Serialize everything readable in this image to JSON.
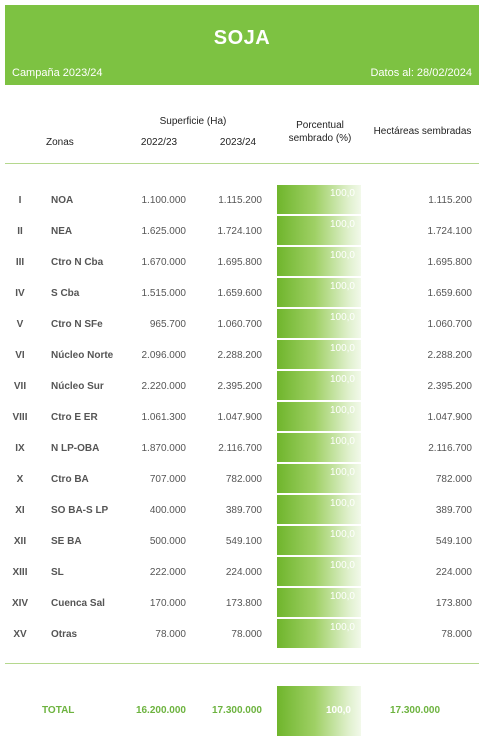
{
  "header": {
    "title": "SOJA",
    "campaign": "Campaña 2023/24",
    "date": "Datos al: 28/02/2024"
  },
  "columns": {
    "zonas": "Zonas",
    "superficie": "Superficie (Ha)",
    "year1": "2022/23",
    "year2": "2023/24",
    "porcentual_line1": "Porcentual",
    "porcentual_line2": "sembrado (%)",
    "hectareas": "Hectáreas sembradas"
  },
  "rows": [
    {
      "roman": "I",
      "zone": "NOA",
      "v2022": "1.100.000",
      "v2023": "1.115.200",
      "pct": "100,0",
      "pct_value": 100.0,
      "hs": "1.115.200"
    },
    {
      "roman": "II",
      "zone": "NEA",
      "v2022": "1.625.000",
      "v2023": "1.724.100",
      "pct": "100,0",
      "pct_value": 100.0,
      "hs": "1.724.100"
    },
    {
      "roman": "III",
      "zone": "Ctro N Cba",
      "v2022": "1.670.000",
      "v2023": "1.695.800",
      "pct": "100,0",
      "pct_value": 100.0,
      "hs": "1.695.800"
    },
    {
      "roman": "IV",
      "zone": "S Cba",
      "v2022": "1.515.000",
      "v2023": "1.659.600",
      "pct": "100,0",
      "pct_value": 100.0,
      "hs": "1.659.600"
    },
    {
      "roman": "V",
      "zone": "Ctro N SFe",
      "v2022": "965.700",
      "v2023": "1.060.700",
      "pct": "100,0",
      "pct_value": 100.0,
      "hs": "1.060.700"
    },
    {
      "roman": "VI",
      "zone": "Núcleo Norte",
      "v2022": "2.096.000",
      "v2023": "2.288.200",
      "pct": "100,0",
      "pct_value": 100.0,
      "hs": "2.288.200"
    },
    {
      "roman": "VII",
      "zone": "Núcleo Sur",
      "v2022": "2.220.000",
      "v2023": "2.395.200",
      "pct": "100,0",
      "pct_value": 100.0,
      "hs": "2.395.200"
    },
    {
      "roman": "VIII",
      "zone": "Ctro E ER",
      "v2022": "1.061.300",
      "v2023": "1.047.900",
      "pct": "100,0",
      "pct_value": 100.0,
      "hs": "1.047.900"
    },
    {
      "roman": "IX",
      "zone": "N LP-OBA",
      "v2022": "1.870.000",
      "v2023": "2.116.700",
      "pct": "100,0",
      "pct_value": 100.0,
      "hs": "2.116.700"
    },
    {
      "roman": "X",
      "zone": "Ctro BA",
      "v2022": "707.000",
      "v2023": "782.000",
      "pct": "100,0",
      "pct_value": 100.0,
      "hs": "782.000"
    },
    {
      "roman": "XI",
      "zone": "SO BA-S LP",
      "v2022": "400.000",
      "v2023": "389.700",
      "pct": "100,0",
      "pct_value": 100.0,
      "hs": "389.700"
    },
    {
      "roman": "XII",
      "zone": "SE BA",
      "v2022": "500.000",
      "v2023": "549.100",
      "pct": "100,0",
      "pct_value": 100.0,
      "hs": "549.100"
    },
    {
      "roman": "XIII",
      "zone": "SL",
      "v2022": "222.000",
      "v2023": "224.000",
      "pct": "100,0",
      "pct_value": 100.0,
      "hs": "224.000"
    },
    {
      "roman": "XIV",
      "zone": "Cuenca Sal",
      "v2022": "170.000",
      "v2023": "173.800",
      "pct": "100,0",
      "pct_value": 100.0,
      "hs": "173.800"
    },
    {
      "roman": "XV",
      "zone": "Otras",
      "v2022": "78.000",
      "v2023": "78.000",
      "pct": "100,0",
      "pct_value": 100.0,
      "hs": "78.000"
    }
  ],
  "total": {
    "label": "TOTAL",
    "v2022": "16.200.000",
    "v2023": "17.300.000",
    "pct": "100,0",
    "pct_value": 100.0,
    "hs": "17.300.000"
  },
  "colors": {
    "header_green": "#7dc242",
    "total_text": "#6db33f",
    "bar_dark": "#6fb52c",
    "bar_light": "#f2f9ea"
  }
}
